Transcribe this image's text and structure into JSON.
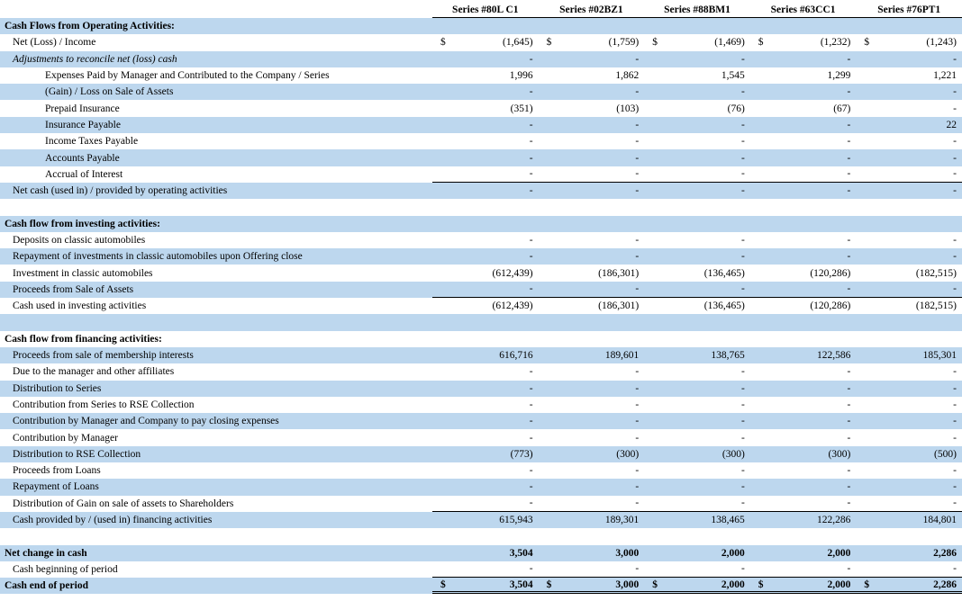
{
  "document_title": "Cash Flow Statement by Series",
  "colors": {
    "row_shade": "#BDD7EE",
    "line": "#000000",
    "text": "#000000"
  },
  "table": {
    "header": {
      "columns": [
        "Series #80L C1",
        "Series #02BZ1",
        "Series #88BM1",
        "Series #63CC1",
        "Series #76PT1"
      ]
    },
    "rows": [
      {
        "label": "Cash Flows from Operating Activities:",
        "indent": 0,
        "bold": true,
        "italic": false,
        "currency": false,
        "underline": "none",
        "values": null
      },
      {
        "label": "Net (Loss) / Income",
        "indent": 1,
        "bold": false,
        "italic": false,
        "currency": true,
        "underline": "none",
        "values": [
          "(1,645)",
          "(1,759)",
          "(1,469)",
          "(1,232)",
          "(1,243)"
        ]
      },
      {
        "label": "Adjustments to reconcile net (loss) cash",
        "indent": 1,
        "bold": false,
        "italic": true,
        "currency": false,
        "underline": "none",
        "values": [
          "-",
          "-",
          "-",
          "-",
          "-"
        ]
      },
      {
        "label": "Expenses Paid by Manager and Contributed to the Company / Series",
        "indent": 2,
        "bold": false,
        "italic": false,
        "currency": false,
        "underline": "none",
        "values": [
          "1,996",
          "1,862",
          "1,545",
          "1,299",
          "1,221"
        ]
      },
      {
        "label": "(Gain) / Loss on Sale of Assets",
        "indent": 2,
        "bold": false,
        "italic": false,
        "currency": false,
        "underline": "none",
        "values": [
          "-",
          "-",
          "-",
          "-",
          "-"
        ]
      },
      {
        "label": "Prepaid Insurance",
        "indent": 2,
        "bold": false,
        "italic": false,
        "currency": false,
        "underline": "none",
        "values": [
          "(351)",
          "(103)",
          "(76)",
          "(67)",
          "-"
        ]
      },
      {
        "label": "Insurance Payable",
        "indent": 2,
        "bold": false,
        "italic": false,
        "currency": false,
        "underline": "none",
        "values": [
          "-",
          "-",
          "-",
          "-",
          "22"
        ]
      },
      {
        "label": "Income Taxes Payable",
        "indent": 2,
        "bold": false,
        "italic": false,
        "currency": false,
        "underline": "none",
        "values": [
          "-",
          "-",
          "-",
          "-",
          "-"
        ]
      },
      {
        "label": "Accounts Payable",
        "indent": 2,
        "bold": false,
        "italic": false,
        "currency": false,
        "underline": "none",
        "values": [
          "-",
          "-",
          "-",
          "-",
          "-"
        ]
      },
      {
        "label": "Accrual of Interest",
        "indent": 2,
        "bold": false,
        "italic": false,
        "currency": false,
        "underline": "single",
        "values": [
          "-",
          "-",
          "-",
          "-",
          "-"
        ]
      },
      {
        "label": "Net cash (used in) / provided by operating activities",
        "indent": 1,
        "bold": false,
        "italic": false,
        "currency": false,
        "underline": "none",
        "values": [
          "-",
          "-",
          "-",
          "-",
          "-"
        ]
      },
      {
        "label": "",
        "indent": 0,
        "bold": false,
        "italic": false,
        "currency": false,
        "underline": "none",
        "values": null
      },
      {
        "label": "Cash flow from investing activities:",
        "indent": 0,
        "bold": true,
        "italic": false,
        "currency": false,
        "underline": "none",
        "values": null
      },
      {
        "label": "Deposits on classic automobiles",
        "indent": 1,
        "bold": false,
        "italic": false,
        "currency": false,
        "underline": "none",
        "values": [
          "-",
          "-",
          "-",
          "-",
          "-"
        ]
      },
      {
        "label": "Repayment of investments in classic automobiles upon Offering close",
        "indent": 1,
        "bold": false,
        "italic": false,
        "currency": false,
        "underline": "none",
        "values": [
          "-",
          "-",
          "-",
          "-",
          "-"
        ]
      },
      {
        "label": "Investment in classic automobiles",
        "indent": 1,
        "bold": false,
        "italic": false,
        "currency": false,
        "underline": "none",
        "values": [
          "(612,439)",
          "(186,301)",
          "(136,465)",
          "(120,286)",
          "(182,515)"
        ]
      },
      {
        "label": "Proceeds from Sale of Assets",
        "indent": 1,
        "bold": false,
        "italic": false,
        "currency": false,
        "underline": "single",
        "values": [
          "-",
          "-",
          "-",
          "-",
          "-"
        ]
      },
      {
        "label": "Cash used in investing activities",
        "indent": 1,
        "bold": false,
        "italic": false,
        "currency": false,
        "underline": "none",
        "values": [
          "(612,439)",
          "(186,301)",
          "(136,465)",
          "(120,286)",
          "(182,515)"
        ]
      },
      {
        "label": "",
        "indent": 0,
        "bold": false,
        "italic": false,
        "currency": false,
        "underline": "none",
        "values": null
      },
      {
        "label": "Cash flow from financing activities:",
        "indent": 0,
        "bold": true,
        "italic": false,
        "currency": false,
        "underline": "none",
        "values": null
      },
      {
        "label": "Proceeds from sale of membership interests",
        "indent": 1,
        "bold": false,
        "italic": false,
        "currency": false,
        "underline": "none",
        "values": [
          "616,716",
          "189,601",
          "138,765",
          "122,586",
          "185,301"
        ]
      },
      {
        "label": "Due to the manager and other affiliates",
        "indent": 1,
        "bold": false,
        "italic": false,
        "currency": false,
        "underline": "none",
        "values": [
          "-",
          "-",
          "-",
          "-",
          "-"
        ]
      },
      {
        "label": "Distribution to Series",
        "indent": 1,
        "bold": false,
        "italic": false,
        "currency": false,
        "underline": "none",
        "values": [
          "-",
          "-",
          "-",
          "-",
          "-"
        ]
      },
      {
        "label": "Contribution from Series to RSE Collection",
        "indent": 1,
        "bold": false,
        "italic": false,
        "currency": false,
        "underline": "none",
        "values": [
          "-",
          "-",
          "-",
          "-",
          "-"
        ]
      },
      {
        "label": "Contribution by Manager and Company to pay closing expenses",
        "indent": 1,
        "bold": false,
        "italic": false,
        "currency": false,
        "underline": "none",
        "values": [
          "-",
          "-",
          "-",
          "-",
          "-"
        ]
      },
      {
        "label": "Contribution by Manager",
        "indent": 1,
        "bold": false,
        "italic": false,
        "currency": false,
        "underline": "none",
        "values": [
          "-",
          "-",
          "-",
          "-",
          "-"
        ]
      },
      {
        "label": "Distribution to RSE Collection",
        "indent": 1,
        "bold": false,
        "italic": false,
        "currency": false,
        "underline": "none",
        "values": [
          "(773)",
          "(300)",
          "(300)",
          "(300)",
          "(500)"
        ]
      },
      {
        "label": "Proceeds from Loans",
        "indent": 1,
        "bold": false,
        "italic": false,
        "currency": false,
        "underline": "none",
        "values": [
          "-",
          "-",
          "-",
          "-",
          "-"
        ]
      },
      {
        "label": "Repayment of Loans",
        "indent": 1,
        "bold": false,
        "italic": false,
        "currency": false,
        "underline": "none",
        "values": [
          "-",
          "-",
          "-",
          "-",
          "-"
        ]
      },
      {
        "label": "Distribution of Gain on sale of assets to Shareholders",
        "indent": 1,
        "bold": false,
        "italic": false,
        "currency": false,
        "underline": "single",
        "values": [
          "-",
          "-",
          "-",
          "-",
          "-"
        ]
      },
      {
        "label": "Cash provided by / (used in) financing activities",
        "indent": 1,
        "bold": false,
        "italic": false,
        "currency": false,
        "underline": "none",
        "values": [
          "615,943",
          "189,301",
          "138,465",
          "122,286",
          "184,801"
        ]
      },
      {
        "label": "",
        "indent": 0,
        "bold": false,
        "italic": false,
        "currency": false,
        "underline": "none",
        "values": null
      },
      {
        "label": "Net change in cash",
        "indent": 0,
        "bold": true,
        "italic": false,
        "currency": false,
        "underline": "none",
        "values": [
          "3,504",
          "3,000",
          "2,000",
          "2,000",
          "2,286"
        ]
      },
      {
        "label": "Cash beginning of period",
        "indent": 1,
        "bold": false,
        "italic": false,
        "currency": false,
        "underline": "single",
        "values": [
          "-",
          "-",
          "-",
          "-",
          "-"
        ]
      },
      {
        "label": "Cash end of period",
        "indent": 0,
        "bold": true,
        "italic": false,
        "currency": true,
        "underline": "double",
        "values": [
          "3,504",
          "3,000",
          "2,000",
          "2,000",
          "2,286"
        ]
      }
    ]
  },
  "currency_symbol": "$"
}
